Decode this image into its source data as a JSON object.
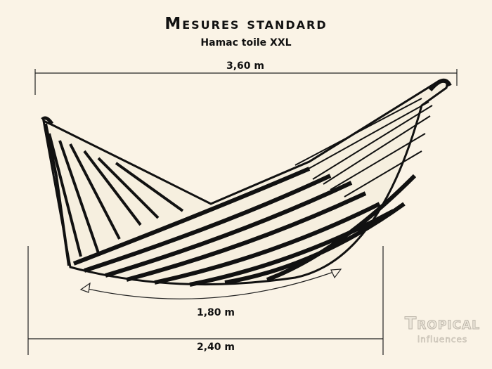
{
  "header": {
    "title": "Mesures standard",
    "subtitle": "Hamac toile XXL"
  },
  "dimensions": {
    "total_length": "3,60 m",
    "bed_length": "1,80 m",
    "span": "2,40 m"
  },
  "logo": {
    "line1": "Tropical",
    "line2": "influences"
  },
  "colors": {
    "background": "#faf3e6",
    "ink": "#111111"
  }
}
